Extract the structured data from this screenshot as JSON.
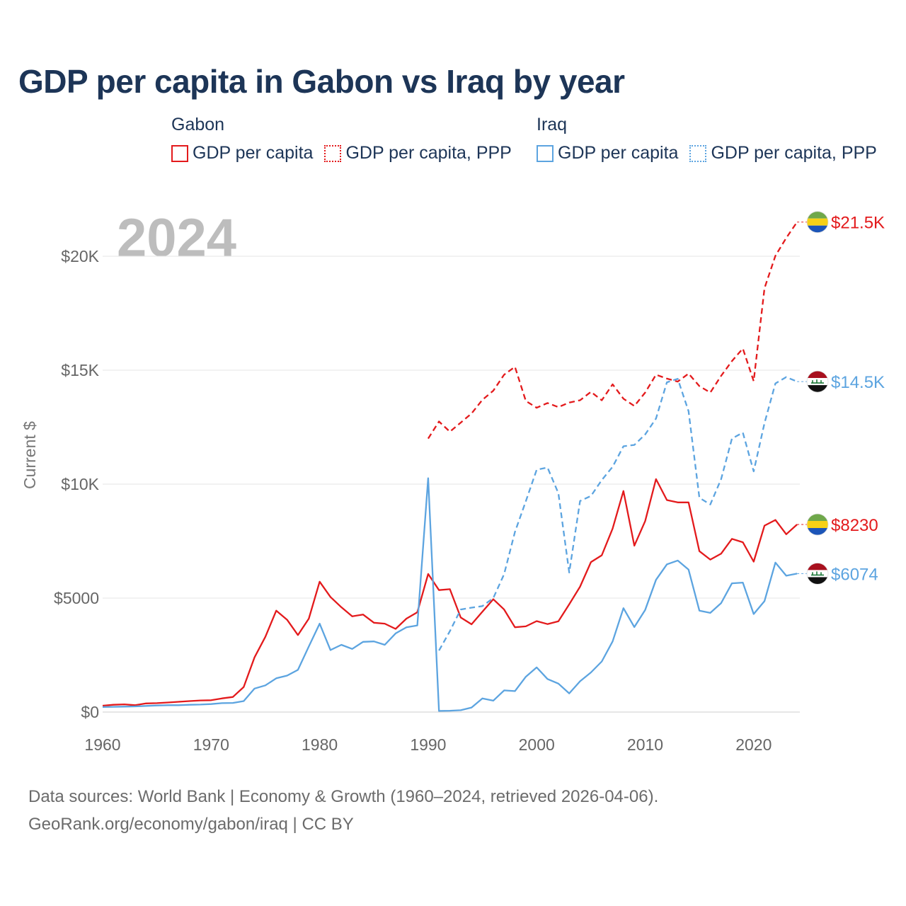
{
  "title": "GDP per capita in Gabon vs Iraq by year",
  "legend": {
    "groups": [
      {
        "name": "Gabon",
        "color": "#e31a1c",
        "items": [
          {
            "label": "GDP per capita",
            "style": "solid"
          },
          {
            "label": "GDP per capita, PPP",
            "style": "dotted"
          }
        ]
      },
      {
        "name": "Iraq",
        "color": "#5ca4e0",
        "items": [
          {
            "label": "GDP per capita",
            "style": "solid"
          },
          {
            "label": "GDP per capita, PPP",
            "style": "dotted"
          }
        ]
      }
    ]
  },
  "footer": {
    "line1": "Data sources: World Bank | Economy & Growth (1960–2024, retrieved 2026-04-06).",
    "line2": "GeoRank.org/economy/gabon/iraq | CC BY"
  },
  "chart_data": {
    "type": "line",
    "title": "GDP per capita in Gabon vs Iraq by year",
    "xlabel": "",
    "ylabel": "Current $",
    "year_watermark": "2024",
    "xlim": [
      1960,
      2024
    ],
    "ylim": [
      0,
      22000
    ],
    "x_ticks": [
      1960,
      1970,
      1980,
      1990,
      2000,
      2010,
      2020
    ],
    "x_tick_labels": [
      "1960",
      "1970",
      "1980",
      "1990",
      "2000",
      "2010",
      "2020"
    ],
    "y_ticks": [
      0,
      5000,
      10000,
      15000,
      20000
    ],
    "y_tick_labels": [
      "$0",
      "$5000",
      "$10K",
      "$15K",
      "$20K"
    ],
    "grid": true,
    "series": [
      {
        "name": "Gabon GDP per capita",
        "country": "Gabon",
        "color": "#e31a1c",
        "dash": "solid",
        "end_label": "$8230",
        "flag": "gabon",
        "start_year": 1960,
        "values": [
          280,
          320,
          340,
          300,
          380,
          390,
          420,
          450,
          480,
          510,
          520,
          600,
          660,
          1100,
          2400,
          3300,
          4450,
          4050,
          3380,
          4100,
          5720,
          5050,
          4600,
          4200,
          4280,
          3920,
          3880,
          3650,
          4100,
          4380,
          6060,
          5350,
          5390,
          4150,
          3850,
          4400,
          4950,
          4500,
          3720,
          3760,
          3990,
          3860,
          3980,
          4730,
          5500,
          6580,
          6880,
          8050,
          9700,
          7300,
          8380,
          10220,
          9300,
          9200,
          9200,
          7060,
          6690,
          6950,
          7600,
          7450,
          6600,
          8180,
          8430,
          7800,
          8230
        ]
      },
      {
        "name": "Gabon GDP per capita, PPP",
        "country": "Gabon",
        "color": "#e31a1c",
        "dash": "dashed",
        "end_label": "$21.5K",
        "flag": "gabon",
        "start_year": 1990,
        "values": [
          12000,
          12750,
          12300,
          12700,
          13100,
          13700,
          14100,
          14800,
          15150,
          13650,
          13350,
          13560,
          13380,
          13580,
          13680,
          14050,
          13680,
          14380,
          13750,
          13430,
          14020,
          14800,
          14630,
          14500,
          14850,
          14300,
          14020,
          14750,
          15400,
          15950,
          14520,
          18600,
          20020,
          20800,
          21500
        ]
      },
      {
        "name": "Iraq GDP per capita",
        "country": "Iraq",
        "color": "#5ca4e0",
        "dash": "solid",
        "end_label": "$6074",
        "flag": "iraq",
        "start_year": 1960,
        "values": [
          220,
          230,
          240,
          250,
          270,
          290,
          300,
          300,
          320,
          330,
          350,
          390,
          400,
          480,
          1030,
          1170,
          1480,
          1600,
          1850,
          2880,
          3880,
          2720,
          2950,
          2770,
          3080,
          3100,
          2950,
          3450,
          3720,
          3800,
          10260,
          50,
          60,
          80,
          200,
          600,
          500,
          950,
          920,
          1550,
          1960,
          1450,
          1250,
          820,
          1350,
          1740,
          2220,
          3100,
          4560,
          3730,
          4480,
          5800,
          6480,
          6650,
          6250,
          4450,
          4350,
          4780,
          5650,
          5680,
          4300,
          4870,
          6560,
          5980,
          6074
        ]
      },
      {
        "name": "Iraq GDP per capita, PPP",
        "country": "Iraq",
        "color": "#5ca4e0",
        "dash": "dashed",
        "end_label": "$14.5K",
        "flag": "iraq",
        "start_year": 1991,
        "values": [
          2700,
          3550,
          4500,
          4580,
          4650,
          5000,
          6050,
          7900,
          9250,
          10630,
          10730,
          9600,
          6120,
          9260,
          9480,
          10180,
          10760,
          11660,
          11720,
          12180,
          12880,
          14470,
          14620,
          13200,
          9400,
          9110,
          10220,
          12000,
          12260,
          10560,
          12680,
          14420,
          14700,
          14500
        ]
      }
    ]
  }
}
